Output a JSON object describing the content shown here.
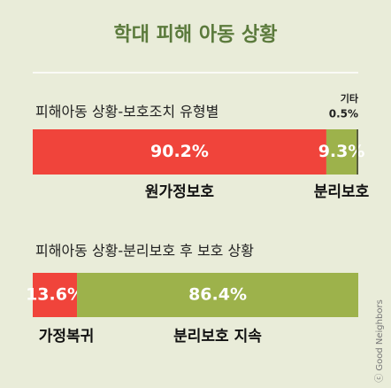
{
  "title": "학대 피해 아동 상황",
  "credit": "ⓒ Good Neighbors",
  "chart_data": [
    {
      "type": "stacked-bar",
      "title": "피해아동 상황-보호조치 유형별",
      "series": [
        {
          "name": "원가정보호",
          "color": "#f0443b",
          "values": [
            90.2
          ],
          "value_labels": [
            "90.2%"
          ]
        },
        {
          "name": "분리보호",
          "color": "#9db24b",
          "values": [
            9.3
          ],
          "value_labels": [
            "9.3%"
          ]
        },
        {
          "name": "기타",
          "color": "#4f5634",
          "values": [
            0.5
          ],
          "value_labels": [
            "0.5%"
          ]
        }
      ]
    },
    {
      "type": "stacked-bar",
      "title": "피해아동 상황-분리보호 후 보호 상황",
      "series": [
        {
          "name": "가정복귀",
          "color": "#f0443b",
          "values": [
            13.6
          ],
          "value_labels": [
            "13.6%"
          ]
        },
        {
          "name": "분리보호 지속",
          "color": "#9db24b",
          "values": [
            86.4
          ],
          "value_labels": [
            "86.4%"
          ]
        }
      ]
    }
  ]
}
